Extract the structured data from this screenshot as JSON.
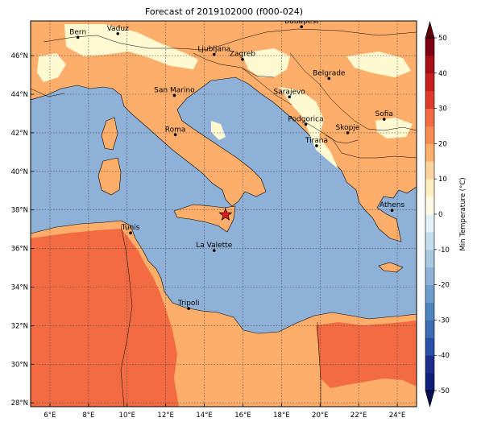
{
  "title": "Forecast of 2019102000 (f000-024)",
  "map": {
    "lon_range": [
      5,
      25
    ],
    "lat_range": [
      27.8,
      47.8
    ],
    "lon_ticks": [
      "6°E",
      "8°E",
      "10°E",
      "12°E",
      "14°E",
      "16°E",
      "18°E",
      "20°E",
      "22°E",
      "24°E"
    ],
    "lat_ticks": [
      "28°N",
      "30°N",
      "32°N",
      "34°N",
      "36°N",
      "38°N",
      "40°N",
      "42°N",
      "44°N",
      "46°N"
    ],
    "grid": true,
    "sea_color": "#8fb1d8",
    "land_colors": {
      "warm_10_20": "#fdae6b",
      "warm_20_30": "#f26b43",
      "cool_0_10": "#fffad2"
    },
    "cities": [
      {
        "name": "Bern",
        "lon": 7.45,
        "lat": 46.95
      },
      {
        "name": "Vaduz",
        "lon": 9.52,
        "lat": 47.14
      },
      {
        "name": "Budapest",
        "lon": 19.04,
        "lat": 47.5
      },
      {
        "name": "Ljubljana",
        "lon": 14.51,
        "lat": 46.06
      },
      {
        "name": "Zagreb",
        "lon": 15.98,
        "lat": 45.81
      },
      {
        "name": "Belgrade",
        "lon": 20.46,
        "lat": 44.82
      },
      {
        "name": "San Marino",
        "lon": 12.45,
        "lat": 43.94
      },
      {
        "name": "Sarajevo",
        "lon": 18.41,
        "lat": 43.86
      },
      {
        "name": "Sofia",
        "lon": 23.32,
        "lat": 42.7
      },
      {
        "name": "Podgorica",
        "lon": 19.26,
        "lat": 42.44
      },
      {
        "name": "Skopje",
        "lon": 21.43,
        "lat": 42.0
      },
      {
        "name": "Roma",
        "lon": 12.5,
        "lat": 41.9
      },
      {
        "name": "Tirana",
        "lon": 19.82,
        "lat": 41.33
      },
      {
        "name": "Athens",
        "lon": 23.73,
        "lat": 37.98
      },
      {
        "name": "Tunis",
        "lon": 10.18,
        "lat": 36.81
      },
      {
        "name": "La Valette",
        "lon": 14.51,
        "lat": 35.9
      },
      {
        "name": "Tripoli",
        "lon": 13.19,
        "lat": 32.89
      }
    ],
    "marker": {
      "type": "star",
      "lon": 15.1,
      "lat": 37.75,
      "color": "#e31a1c"
    }
  },
  "colorbar": {
    "label": "Min Temperature (°C)",
    "ticks": [
      "-50",
      "-40",
      "-30",
      "-20",
      "-10",
      "0",
      "10",
      "20",
      "30",
      "40",
      "50"
    ],
    "bins": [
      {
        "min": -50,
        "max": -45,
        "color": "#0f1f7a"
      },
      {
        "min": -45,
        "max": -40,
        "color": "#1c2d8f"
      },
      {
        "min": -40,
        "max": -35,
        "color": "#2b4fa8"
      },
      {
        "min": -35,
        "max": -30,
        "color": "#3c6cb4"
      },
      {
        "min": -30,
        "max": -25,
        "color": "#4d85bf"
      },
      {
        "min": -25,
        "max": -20,
        "color": "#6d9ecb"
      },
      {
        "min": -20,
        "max": -15,
        "color": "#8fb3d6"
      },
      {
        "min": -15,
        "max": -10,
        "color": "#a8c8e0"
      },
      {
        "min": -10,
        "max": -5,
        "color": "#c4ddea"
      },
      {
        "min": -5,
        "max": 0,
        "color": "#e2f1f6"
      },
      {
        "min": 0,
        "max": 5,
        "color": "#fffbe5"
      },
      {
        "min": 5,
        "max": 10,
        "color": "#fff0c2"
      },
      {
        "min": 10,
        "max": 15,
        "color": "#fdd49e"
      },
      {
        "min": 15,
        "max": 20,
        "color": "#fdae6b"
      },
      {
        "min": 20,
        "max": 25,
        "color": "#f88c52"
      },
      {
        "min": 25,
        "max": 30,
        "color": "#f26b43"
      },
      {
        "min": 30,
        "max": 35,
        "color": "#de3b2c"
      },
      {
        "min": 35,
        "max": 40,
        "color": "#c42120"
      },
      {
        "min": 40,
        "max": 45,
        "color": "#a50f15"
      },
      {
        "min": 45,
        "max": 50,
        "color": "#7f0010"
      }
    ],
    "over_color": "#5a0008",
    "under_color": "#08104f"
  }
}
